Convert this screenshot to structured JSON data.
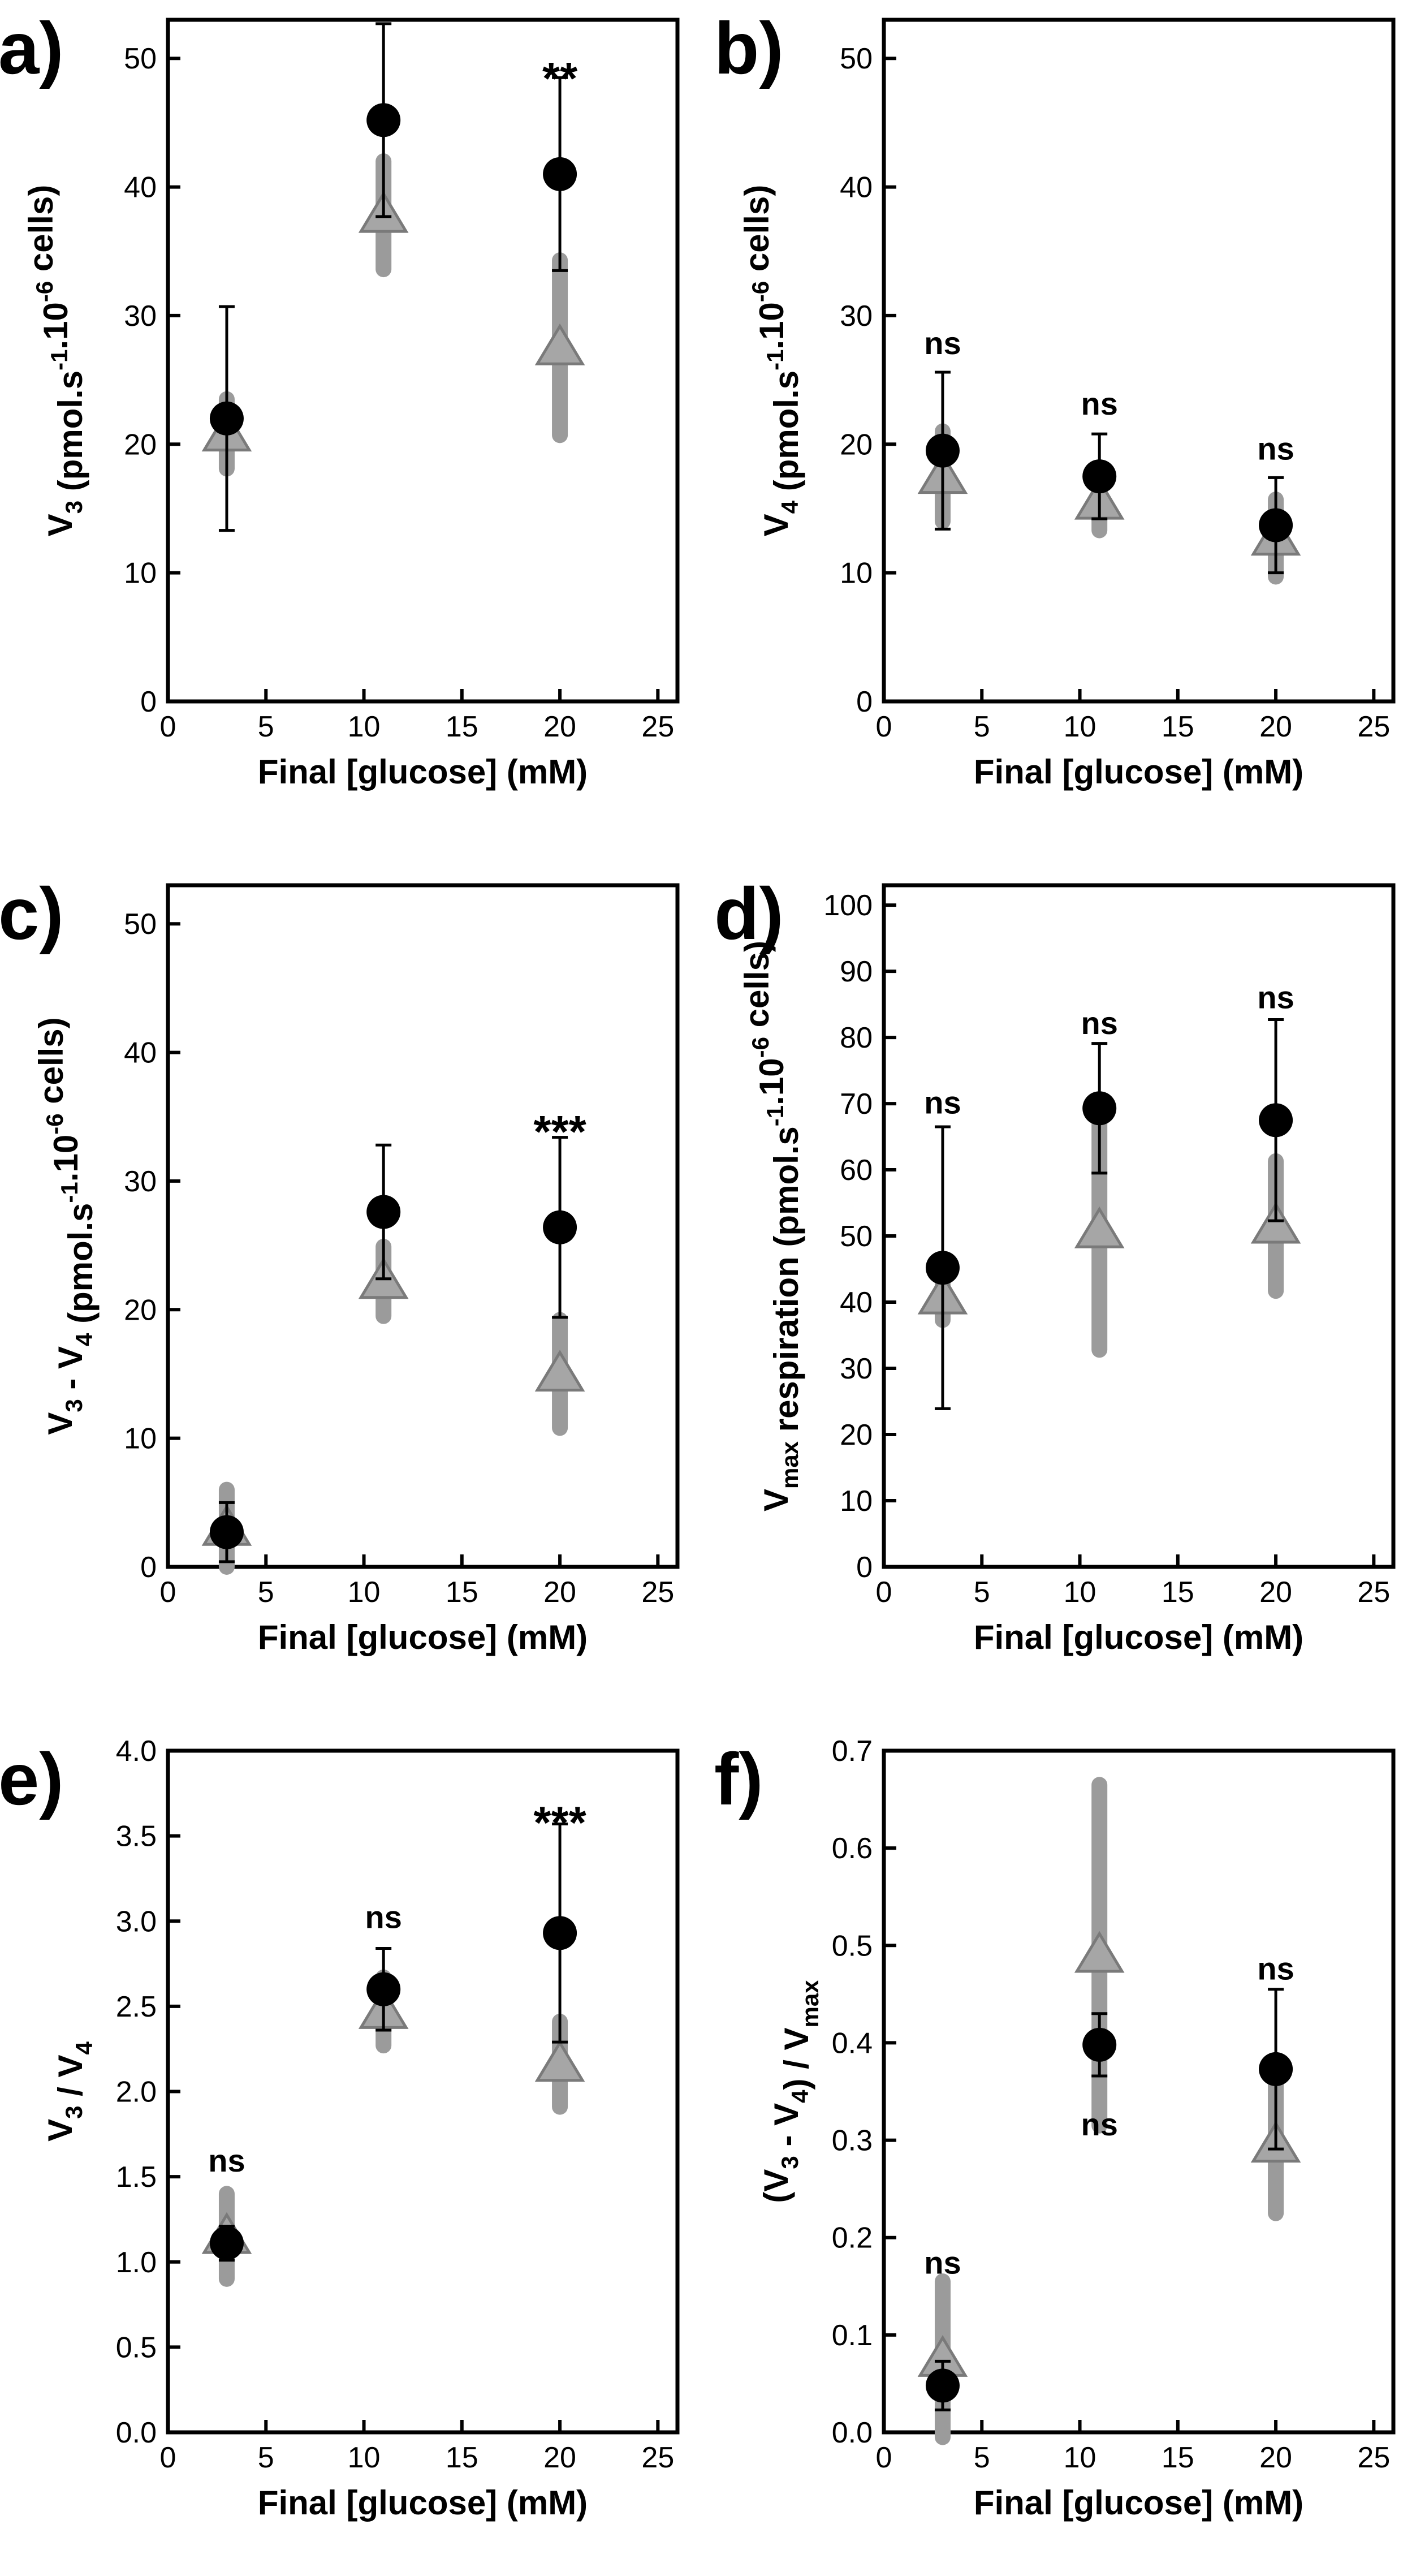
{
  "colors": {
    "black_series": "#000000",
    "gray_series": "#9b9b9b",
    "gray_marker": "#a6a6a6",
    "gray_edge": "#7a7a7a"
  },
  "series_legend": [
    {
      "name": "circle",
      "marker": "circle",
      "color": "#000000"
    },
    {
      "name": "triangle",
      "marker": "triangle",
      "color": "#9b9b9b"
    }
  ],
  "chart_data": [
    {
      "panel": "a)",
      "type": "scatter",
      "xlabel": "Final [glucose] (mM)",
      "ylabel_parts": [
        "V",
        "3",
        " (pmol.s",
        "-1",
        ".10",
        "-6",
        " cells)"
      ],
      "xlim": [
        0,
        26
      ],
      "ylim": [
        0,
        53
      ],
      "xticks": [
        "0",
        "5",
        "10",
        "15",
        "20",
        "25"
      ],
      "yticks": [
        "0",
        "10",
        "20",
        "30",
        "40",
        "50"
      ],
      "x": [
        3,
        11,
        20
      ],
      "series": [
        {
          "name": "circle",
          "values": [
            22,
            45.2,
            41
          ],
          "err": [
            8.7,
            7.5,
            7.5
          ]
        },
        {
          "name": "triangle",
          "values": [
            20.8,
            37.8,
            27.5
          ],
          "err": [
            2.7,
            4.2,
            6.8
          ]
        }
      ],
      "annotations": [
        {
          "x": 20,
          "y": 49,
          "text": "**"
        }
      ]
    },
    {
      "panel": "b)",
      "type": "scatter",
      "xlabel": "Final [glucose] (mM)",
      "ylabel_parts": [
        "V",
        "4",
        " (pmol.s",
        "-1",
        ".10",
        "-6",
        " cells)"
      ],
      "xlim": [
        0,
        26
      ],
      "ylim": [
        0,
        53
      ],
      "xticks": [
        "0",
        "5",
        "10",
        "15",
        "20",
        "25"
      ],
      "yticks": [
        "0",
        "10",
        "20",
        "30",
        "40",
        "50"
      ],
      "x": [
        3,
        11,
        20
      ],
      "series": [
        {
          "name": "circle",
          "values": [
            19.5,
            17.5,
            13.7
          ],
          "err": [
            6.1,
            3.3,
            3.7
          ]
        },
        {
          "name": "triangle",
          "values": [
            17.5,
            15.5,
            12.7
          ],
          "err": [
            3.5,
            2.2,
            3.0
          ]
        }
      ],
      "annotations": [
        {
          "x": 3,
          "y": 27,
          "text": "ns"
        },
        {
          "x": 11,
          "y": 22.3,
          "text": "ns"
        },
        {
          "x": 20,
          "y": 18.8,
          "text": "ns"
        }
      ]
    },
    {
      "panel": "c)",
      "type": "scatter",
      "xlabel": "Final [glucose] (mM)",
      "ylabel_parts": [
        "V",
        "3",
        " - V",
        "4",
        " (pmol.s",
        "-1",
        ".10",
        "-6",
        " cells)"
      ],
      "xlim": [
        0,
        26
      ],
      "ylim": [
        0,
        53
      ],
      "xticks": [
        "0",
        "5",
        "10",
        "15",
        "20",
        "25"
      ],
      "yticks": [
        "0",
        "10",
        "20",
        "30",
        "40",
        "50"
      ],
      "x": [
        3,
        11,
        20
      ],
      "series": [
        {
          "name": "circle",
          "values": [
            2.7,
            27.6,
            26.4
          ],
          "err": [
            2.3,
            5.2,
            7.0
          ]
        },
        {
          "name": "triangle",
          "values": [
            3.0,
            22.2,
            15.0
          ],
          "err": [
            3.0,
            2.7,
            4.2
          ]
        }
      ],
      "annotations": [
        {
          "x": 20,
          "y": 34.4,
          "text": "***"
        }
      ]
    },
    {
      "panel": "d)",
      "type": "scatter",
      "xlabel": "Final [glucose] (mM)",
      "ylabel_parts": [
        "V",
        "max",
        " respiration (pmol.s",
        "-1",
        ".10",
        "-6",
        " cells)"
      ],
      "xlim": [
        0,
        26
      ],
      "ylim": [
        0,
        103
      ],
      "xticks": [
        "0",
        "5",
        "10",
        "15",
        "20",
        "25"
      ],
      "yticks": [
        "0",
        "10",
        "20",
        "30",
        "40",
        "50",
        "60",
        "70",
        "80",
        "90",
        "100"
      ],
      "x": [
        3,
        11,
        20
      ],
      "series": [
        {
          "name": "circle",
          "values": [
            45.2,
            69.3,
            67.5
          ],
          "err": [
            21.3,
            9.8,
            15.2
          ]
        },
        {
          "name": "triangle",
          "values": [
            40.8,
            50.8,
            51.5
          ],
          "err": [
            3.5,
            18.0,
            9.8
          ]
        }
      ],
      "annotations": [
        {
          "x": 3,
          "y": 68.5,
          "text": "ns"
        },
        {
          "x": 11,
          "y": 80.5,
          "text": "ns"
        },
        {
          "x": 20,
          "y": 84.4,
          "text": "ns"
        }
      ]
    },
    {
      "panel": "e)",
      "type": "scatter",
      "xlabel": "Final [glucose] (mM)",
      "ylabel_parts": [
        "V",
        "3",
        " / V",
        "4"
      ],
      "xlim": [
        0,
        26
      ],
      "ylim": [
        0,
        4.0
      ],
      "xticks": [
        "0",
        "5",
        "10",
        "15",
        "20",
        "25"
      ],
      "yticks": [
        "0.0",
        "0.5",
        "1.0",
        "1.5",
        "2.0",
        "2.5",
        "3.0",
        "3.5",
        "4.0"
      ],
      "x": [
        3,
        11,
        20
      ],
      "series": [
        {
          "name": "circle",
          "values": [
            1.11,
            2.6,
            2.93
          ],
          "err": [
            0.1,
            0.24,
            0.64
          ]
        },
        {
          "name": "triangle",
          "values": [
            1.15,
            2.47,
            2.16
          ],
          "err": [
            0.25,
            0.2,
            0.25
          ]
        }
      ],
      "annotations": [
        {
          "x": 3,
          "y": 1.53,
          "text": "ns"
        },
        {
          "x": 11,
          "y": 2.96,
          "text": "ns"
        },
        {
          "x": 20,
          "y": 3.62,
          "text": "***"
        }
      ]
    },
    {
      "panel": "f)",
      "type": "scatter",
      "xlabel": "Final [glucose] (mM)",
      "ylabel_parts": [
        "(V",
        "3",
        " - V",
        "4",
        ") / V",
        "max"
      ],
      "xlim": [
        0,
        26
      ],
      "ylim": [
        0,
        0.7
      ],
      "xticks": [
        "0",
        "5",
        "10",
        "15",
        "20",
        "25"
      ],
      "yticks": [
        "0.0",
        "0.1",
        "0.2",
        "0.3",
        "0.4",
        "0.5",
        "0.6",
        "0.7"
      ],
      "x": [
        3,
        11,
        20
      ],
      "series": [
        {
          "name": "circle",
          "values": [
            0.048,
            0.398,
            0.373
          ],
          "err": [
            0.025,
            0.032,
            0.082
          ]
        },
        {
          "name": "triangle",
          "values": [
            0.075,
            0.49,
            0.295
          ],
          "err": [
            0.08,
            0.175,
            0.07
          ]
        }
      ],
      "annotations": [
        {
          "x": 3,
          "y": 0.163,
          "text": "ns"
        },
        {
          "x": 11,
          "y": 0.305,
          "text": "ns"
        },
        {
          "x": 20,
          "y": 0.465,
          "text": "ns"
        }
      ]
    }
  ]
}
